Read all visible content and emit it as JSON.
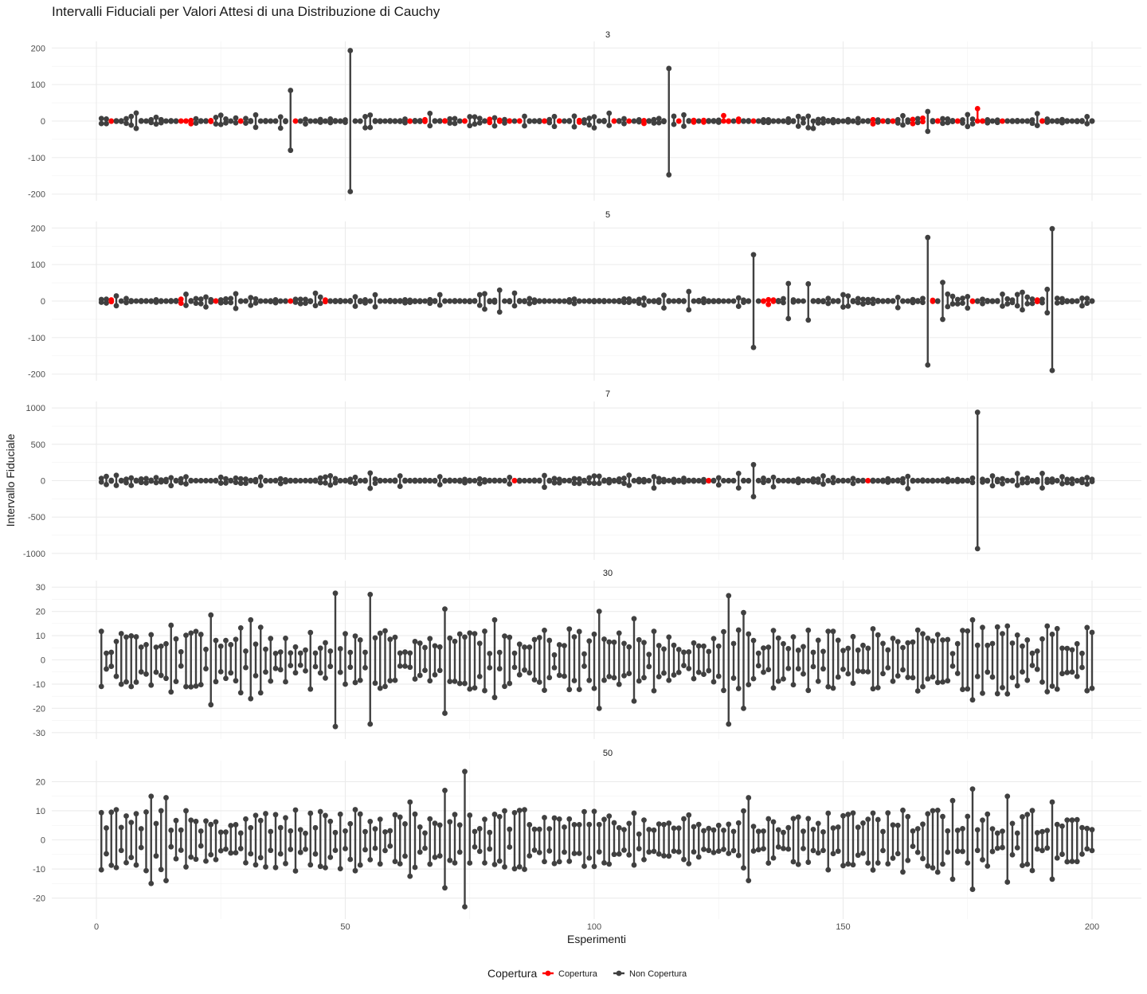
{
  "chart_data": {
    "type": "errorbar",
    "title": "Intervalli Fiduciali per Valori Attesi di una Distribuzione di Cauchy",
    "xlabel": "Esperimenti",
    "ylabel": "Intervallo Fiduciale",
    "xlim": [
      1,
      200
    ],
    "x_ticks": [
      0,
      50,
      100,
      150,
      200
    ],
    "grid": true,
    "legend": {
      "title": "Copertura",
      "position": "bottom",
      "entries": [
        {
          "label": "Copertura",
          "color": "#ff0000"
        },
        {
          "label": "Non Copertura",
          "color": "#404040"
        }
      ]
    },
    "panels": [
      {
        "label": "3",
        "ylim": [
          -200,
          200
        ],
        "y_ticks": [
          -200,
          -100,
          0,
          100,
          200
        ],
        "intervals": [
          {
            "x": 39,
            "lower": -80,
            "upper": 84,
            "coverage": "Non Copertura"
          },
          {
            "x": 51,
            "lower": -193,
            "upper": 193,
            "coverage": "Non Copertura"
          },
          {
            "x": 115,
            "lower": -147,
            "upper": 144,
            "coverage": "Non Copertura"
          },
          {
            "x": 177,
            "lower": 0,
            "upper": 34,
            "coverage": "Copertura"
          },
          {
            "x": 8,
            "lower": -20,
            "upper": 22,
            "coverage": "Non Copertura"
          },
          {
            "x": 126,
            "lower": 0,
            "upper": 15,
            "coverage": "Copertura"
          },
          {
            "x": 167,
            "lower": -28,
            "upper": 26,
            "coverage": "Non Copertura"
          },
          {
            "x": 144,
            "lower": -20,
            "upper": 0,
            "coverage": "Non Copertura"
          }
        ],
        "covered_x": [
          3,
          17,
          18,
          19,
          23,
          29,
          40,
          63,
          66,
          70,
          74,
          79,
          81,
          83,
          85,
          90,
          93,
          97,
          104,
          107,
          110,
          117,
          120,
          122,
          127,
          129,
          132,
          156,
          158,
          160,
          164,
          166,
          169,
          173,
          178,
          182,
          190
        ]
      },
      {
        "label": "5",
        "ylim": [
          -200,
          200
        ],
        "y_ticks": [
          -200,
          -100,
          0,
          100,
          200
        ],
        "intervals": [
          {
            "x": 132,
            "lower": -127,
            "upper": 127,
            "coverage": "Non Copertura"
          },
          {
            "x": 167,
            "lower": -175,
            "upper": 174,
            "coverage": "Non Copertura"
          },
          {
            "x": 192,
            "lower": -190,
            "upper": 198,
            "coverage": "Non Copertura"
          },
          {
            "x": 139,
            "lower": -48,
            "upper": 48,
            "coverage": "Non Copertura"
          },
          {
            "x": 143,
            "lower": -52,
            "upper": 47,
            "coverage": "Non Copertura"
          },
          {
            "x": 170,
            "lower": -50,
            "upper": 51,
            "coverage": "Non Copertura"
          },
          {
            "x": 81,
            "lower": -30,
            "upper": 30,
            "coverage": "Non Copertura"
          },
          {
            "x": 191,
            "lower": -32,
            "upper": 32,
            "coverage": "Non Copertura"
          },
          {
            "x": 119,
            "lower": -24,
            "upper": 26,
            "coverage": "Non Copertura"
          },
          {
            "x": 78,
            "lower": -22,
            "upper": 20,
            "coverage": "Non Copertura"
          },
          {
            "x": 28,
            "lower": -20,
            "upper": 20,
            "coverage": "Non Copertura"
          },
          {
            "x": 186,
            "lower": -24,
            "upper": 24,
            "coverage": "Non Copertura"
          }
        ],
        "covered_x": [
          3,
          17,
          24,
          28,
          39,
          46,
          134,
          135,
          136,
          168,
          176,
          189
        ]
      },
      {
        "label": "7",
        "ylim": [
          -1000,
          1000
        ],
        "y_ticks": [
          -1000,
          -500,
          0,
          500,
          1000
        ],
        "intervals": [
          {
            "x": 177,
            "lower": -935,
            "upper": 940,
            "coverage": "Non Copertura"
          },
          {
            "x": 132,
            "lower": -220,
            "upper": 220,
            "coverage": "Non Copertura"
          },
          {
            "x": 55,
            "lower": -105,
            "upper": 105,
            "coverage": "Non Copertura"
          },
          {
            "x": 129,
            "lower": -100,
            "upper": 100,
            "coverage": "Non Copertura"
          },
          {
            "x": 190,
            "lower": -100,
            "upper": 100,
            "coverage": "Non Copertura"
          },
          {
            "x": 69,
            "lower": -55,
            "upper": 55,
            "coverage": "Non Copertura"
          },
          {
            "x": 83,
            "lower": -45,
            "upper": 45,
            "coverage": "Non Copertura"
          }
        ],
        "covered_x": [
          84,
          123,
          155
        ]
      },
      {
        "label": "30",
        "ylim": [
          -30,
          30
        ],
        "y_ticks": [
          -30,
          -20,
          -10,
          0,
          10,
          20,
          30
        ],
        "intervals": [
          {
            "x": 48,
            "lower": -27.5,
            "upper": 27.5,
            "coverage": "Non Copertura"
          },
          {
            "x": 55,
            "lower": -26.5,
            "upper": 27,
            "coverage": "Non Copertura"
          },
          {
            "x": 70,
            "lower": -22,
            "upper": 21,
            "coverage": "Non Copertura"
          },
          {
            "x": 101,
            "lower": -20,
            "upper": 20,
            "coverage": "Non Copertura"
          },
          {
            "x": 127,
            "lower": -26.5,
            "upper": 26.5,
            "coverage": "Non Copertura"
          },
          {
            "x": 130,
            "lower": -20,
            "upper": 19.5,
            "coverage": "Non Copertura"
          },
          {
            "x": 23,
            "lower": -18.5,
            "upper": 18.5,
            "coverage": "Non Copertura"
          },
          {
            "x": 176,
            "lower": -16.5,
            "upper": 16.5,
            "coverage": "Non Copertura"
          },
          {
            "x": 80,
            "lower": -15.5,
            "upper": 16.5,
            "coverage": "Non Copertura"
          },
          {
            "x": 31,
            "lower": -16,
            "upper": 16.5,
            "coverage": "Non Copertura"
          },
          {
            "x": 108,
            "lower": -17,
            "upper": 17,
            "coverage": "Non Copertura"
          }
        ],
        "half_width_range": [
          2.5,
          14
        ],
        "covered_x": []
      },
      {
        "label": "50",
        "ylim": [
          -25,
          25
        ],
        "y_ticks": [
          -20,
          -10,
          0,
          10,
          20
        ],
        "intervals": [
          {
            "x": 74,
            "lower": -23,
            "upper": 23.5,
            "coverage": "Non Copertura"
          },
          {
            "x": 70,
            "lower": -16.5,
            "upper": 17,
            "coverage": "Non Copertura"
          },
          {
            "x": 176,
            "lower": -17,
            "upper": 17.5,
            "coverage": "Non Copertura"
          },
          {
            "x": 11,
            "lower": -15,
            "upper": 15,
            "coverage": "Non Copertura"
          },
          {
            "x": 14,
            "lower": -14,
            "upper": 14.5,
            "coverage": "Non Copertura"
          },
          {
            "x": 183,
            "lower": -14.5,
            "upper": 15,
            "coverage": "Non Copertura"
          },
          {
            "x": 131,
            "lower": -14,
            "upper": 14.5,
            "coverage": "Non Copertura"
          },
          {
            "x": 172,
            "lower": -13.5,
            "upper": 13.5,
            "coverage": "Non Copertura"
          },
          {
            "x": 192,
            "lower": -13.5,
            "upper": 13,
            "coverage": "Non Copertura"
          },
          {
            "x": 63,
            "lower": -12.5,
            "upper": 13,
            "coverage": "Non Copertura"
          }
        ],
        "half_width_range": [
          2.5,
          11
        ],
        "covered_x": []
      }
    ]
  }
}
